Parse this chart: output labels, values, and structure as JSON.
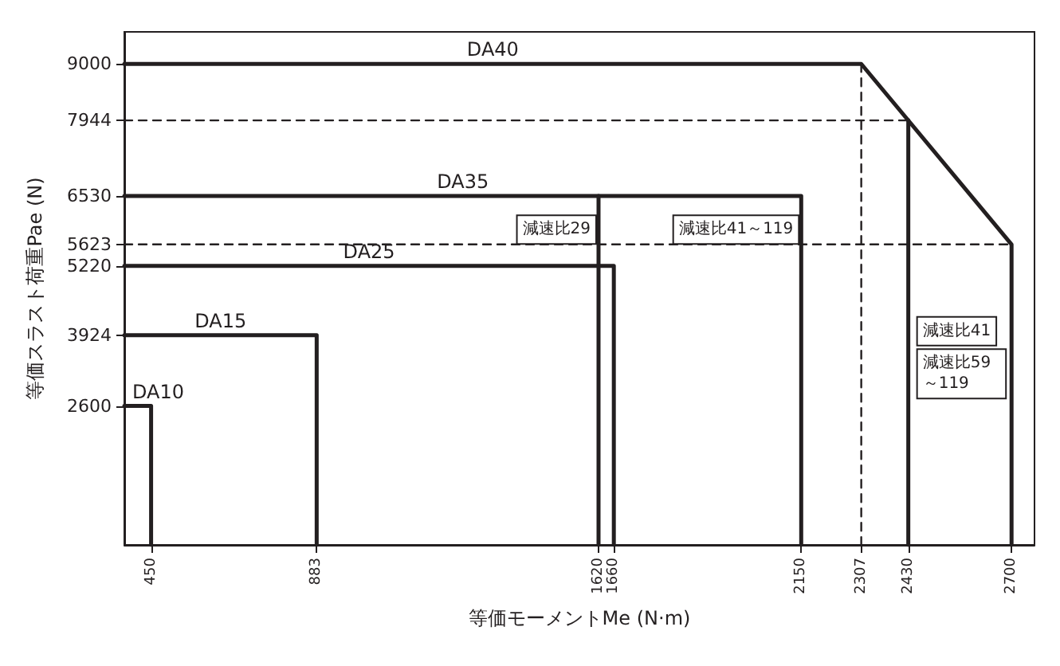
{
  "chart_data": {
    "type": "line",
    "xlabel": "等価モーメントMe (N·m)",
    "ylabel": "等価スラスト荷重Pae (N)",
    "xlim": [
      380,
      2760
    ],
    "ylim": [
      0,
      9600
    ],
    "xticks": [
      450,
      883,
      1620,
      1660,
      2150,
      2307,
      2430,
      2700
    ],
    "yticks": [
      2600,
      3924,
      5220,
      5623,
      6530,
      7944,
      9000
    ],
    "grid": false,
    "legend": false,
    "marker": "none",
    "series": [
      {
        "name": "DA40",
        "color": "#231f20",
        "line_style": "solid",
        "x": [
          380,
          2307,
          2700,
          2700
        ],
        "values": [
          9000,
          9000,
          5623,
          0
        ]
      },
      {
        "name": "DA35",
        "color": "#231f20",
        "line_style": "solid",
        "x": [
          380,
          2150,
          2150
        ],
        "values": [
          6530,
          6530,
          0
        ]
      },
      {
        "name": "DA25",
        "color": "#231f20",
        "line_style": "solid",
        "x": [
          380,
          1660,
          1660
        ],
        "values": [
          5220,
          5220,
          0
        ]
      },
      {
        "name": "DA15",
        "color": "#231f20",
        "line_style": "solid",
        "x": [
          380,
          883,
          883
        ],
        "values": [
          3924,
          3924,
          0
        ]
      },
      {
        "name": "DA10",
        "color": "#231f20",
        "line_style": "solid",
        "x": [
          380,
          450,
          450
        ],
        "values": [
          2600,
          2600,
          0
        ]
      },
      {
        "color": "#231f20",
        "line_style": "solid",
        "x": [
          1620,
          1620
        ],
        "values": [
          6530,
          0
        ]
      },
      {
        "color": "#231f20",
        "line_style": "solid",
        "x": [
          2430,
          2430
        ],
        "values": [
          7944,
          0
        ]
      },
      {
        "color": "#231f20",
        "line_style": "dashed",
        "x": [
          2307,
          2307
        ],
        "values": [
          9000,
          0
        ]
      },
      {
        "color": "#231f20",
        "line_style": "dashed",
        "x": [
          380,
          2430
        ],
        "values": [
          7944,
          7944
        ]
      },
      {
        "color": "#231f20",
        "line_style": "dashed",
        "x": [
          380,
          2700
        ],
        "values": [
          5623,
          5623
        ]
      }
    ],
    "annotations": [
      {
        "text": "減速比29",
        "x": 1620,
        "y": 5900
      },
      {
        "text": "減速比41～119",
        "x": 2150,
        "y": 5900
      },
      {
        "text": "減速比41",
        "x": 2430,
        "y": 4000
      },
      {
        "text": "減速比59～119",
        "x": 2700,
        "y": 3200
      }
    ]
  }
}
